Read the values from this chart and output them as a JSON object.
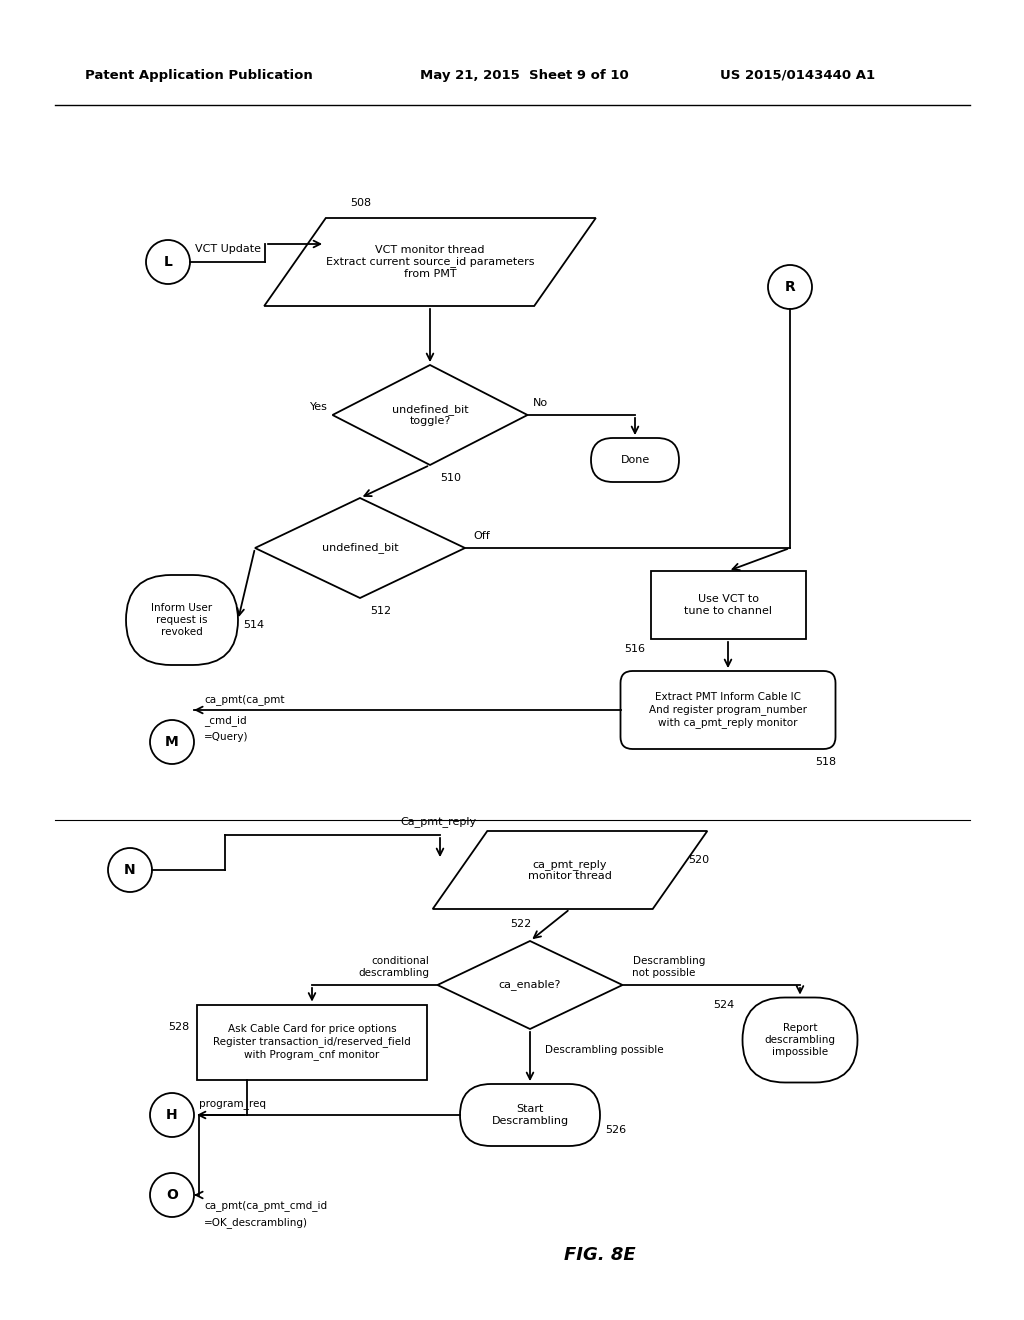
{
  "title_left": "Patent Application Publication",
  "title_mid": "May 21, 2015  Sheet 9 of 10",
  "title_right": "US 2015/0143440 A1",
  "fig_label": "FIG. 8E",
  "background": "#ffffff",
  "text_color": "#000000"
}
